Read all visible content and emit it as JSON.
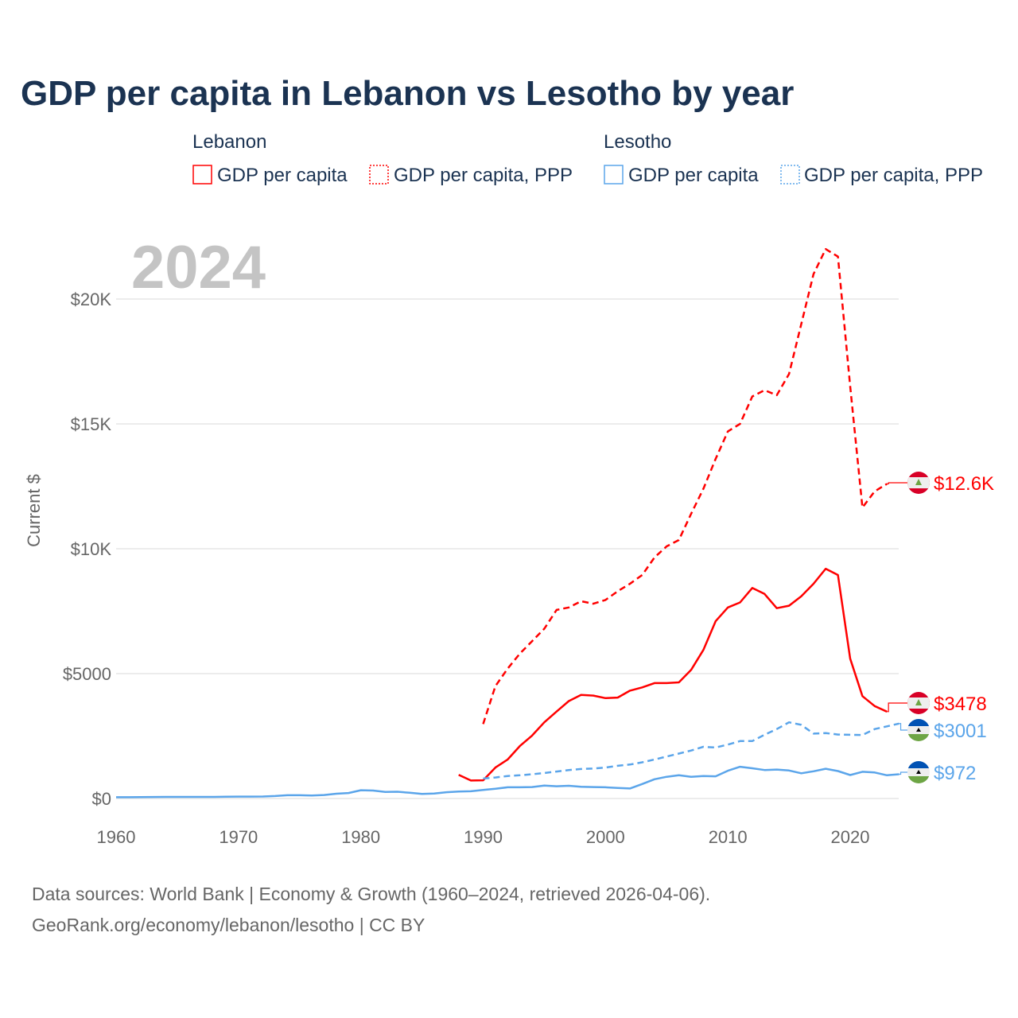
{
  "title": "GDP per capita in Lebanon vs Lesotho by year",
  "legend": {
    "groups": [
      {
        "country": "Lebanon",
        "items": [
          "GDP per capita",
          "GDP per capita, PPP"
        ]
      },
      {
        "country": "Lesotho",
        "items": [
          "GDP per capita",
          "GDP per capita, PPP"
        ]
      }
    ]
  },
  "year_overlay": "2024",
  "source_lines": [
    "Data sources: World Bank | Economy & Growth (1960–2024, retrieved 2026-04-06).",
    "GeoRank.org/economy/lebanon/lesotho | CC BY"
  ],
  "colors": {
    "lebanon": "#ff0000",
    "lesotho": "#5ba5ea"
  },
  "chart_data": {
    "type": "line",
    "title": "GDP per capita in Lebanon vs Lesotho by year",
    "xlabel": "",
    "ylabel": "Current $",
    "xlim": [
      1960,
      2024
    ],
    "ylim": [
      0,
      22000
    ],
    "x_ticks": [
      1960,
      1970,
      1980,
      1990,
      2000,
      2010,
      2020
    ],
    "y_ticks": [
      0,
      5000,
      10000,
      15000,
      20000
    ],
    "y_tick_labels": [
      "$0",
      "$5000",
      "$10K",
      "$15K",
      "$20K"
    ],
    "grid": true,
    "series": [
      {
        "name": "Lebanon GDP per capita",
        "country": "lebanon",
        "style": "solid",
        "end_label": "$3478",
        "start_year": 1988,
        "values": [
          950,
          720,
          730,
          1240,
          1560,
          2100,
          2520,
          3050,
          3480,
          3900,
          4150,
          4120,
          4020,
          4040,
          4320,
          4450,
          4620,
          4620,
          4650,
          5150,
          5950,
          7100,
          7650,
          7850,
          8430,
          8190,
          7620,
          7720,
          8100,
          8600,
          9200,
          8950,
          5600,
          4100,
          3700,
          3478
        ]
      },
      {
        "name": "Lebanon GDP per capita, PPP",
        "country": "lebanon",
        "style": "dashed",
        "end_label": "$12.6K",
        "start_year": 1990,
        "values": [
          2980,
          4500,
          5200,
          5800,
          6300,
          6800,
          7550,
          7650,
          7900,
          7800,
          7950,
          8300,
          8600,
          8950,
          9650,
          10100,
          10350,
          11400,
          12400,
          13600,
          14700,
          15000,
          16100,
          16350,
          16150,
          17000,
          19000,
          21000,
          22000,
          21700,
          16500,
          11650,
          12300,
          12600
        ]
      },
      {
        "name": "Lesotho GDP per capita",
        "country": "lesotho",
        "style": "solid",
        "end_label": "$972",
        "start_year": 1960,
        "values": [
          50,
          50,
          55,
          60,
          65,
          65,
          65,
          65,
          65,
          70,
          75,
          75,
          80,
          100,
          130,
          130,
          120,
          140,
          190,
          220,
          330,
          320,
          260,
          270,
          230,
          180,
          200,
          250,
          280,
          290,
          340,
          390,
          450,
          450,
          460,
          520,
          490,
          510,
          470,
          460,
          450,
          420,
          400,
          580,
          770,
          870,
          930,
          870,
          900,
          890,
          1110,
          1270,
          1210,
          1140,
          1160,
          1120,
          1010,
          1090,
          1190,
          1100,
          940,
          1070,
          1040,
          930,
          972
        ]
      },
      {
        "name": "Lesotho GDP per capita, PPP",
        "country": "lesotho",
        "style": "dashed",
        "end_label": "$3001",
        "start_year": 1990,
        "values": [
          800,
          840,
          900,
          930,
          970,
          1020,
          1080,
          1140,
          1180,
          1200,
          1240,
          1310,
          1360,
          1450,
          1560,
          1680,
          1800,
          1920,
          2070,
          2040,
          2160,
          2300,
          2300,
          2550,
          2780,
          3050,
          2950,
          2600,
          2620,
          2560,
          2550,
          2540,
          2780,
          2890,
          3001
        ]
      }
    ]
  }
}
